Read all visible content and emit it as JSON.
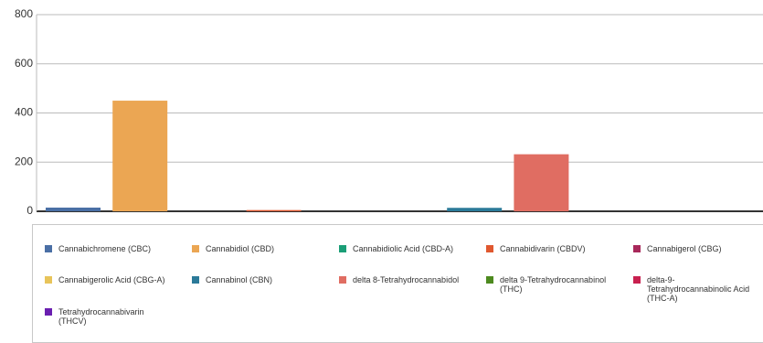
{
  "chart_data": {
    "type": "bar",
    "categories": [
      null
    ],
    "series": [
      {
        "name": "Cannabichromene (CBC)",
        "color": "#4a6fa5",
        "values": [
          15
        ]
      },
      {
        "name": "Cannabidiol (CBD)",
        "color": "#eba653",
        "values": [
          450
        ]
      },
      {
        "name": "Cannabidiolic Acid (CBD-A)",
        "color": "#1a9e77",
        "values": [
          0
        ]
      },
      {
        "name": "Cannabidivarin (CBDV)",
        "color": "#e0582f",
        "values": [
          5
        ]
      },
      {
        "name": "Cannabigerol (CBG)",
        "color": "#a8285a",
        "values": [
          0
        ]
      },
      {
        "name": "Cannabigerolic Acid (CBG-A)",
        "color": "#e8c45a",
        "values": [
          0
        ]
      },
      {
        "name": "Cannabinol (CBN)",
        "color": "#2b7a99",
        "values": [
          14
        ]
      },
      {
        "name": "delta 8-Tetrahydrocannabidol",
        "color": "#e06d62",
        "values": [
          232
        ]
      },
      {
        "name": "delta 9-Tetrahydrocannabinol (THC)",
        "color": "#4d8a1f",
        "values": [
          0
        ]
      },
      {
        "name": "delta-9-Tetrahydrocannabinolic Acid (THC-A)",
        "color": "#c8204f",
        "values": [
          0
        ]
      },
      {
        "name": "Tetrahydrocannabivarin (THCV)",
        "color": "#6a1fb0",
        "values": [
          0
        ]
      }
    ],
    "ylim": [
      0,
      800
    ],
    "yticks": [
      0,
      200,
      400,
      600,
      800
    ],
    "grid": true
  }
}
